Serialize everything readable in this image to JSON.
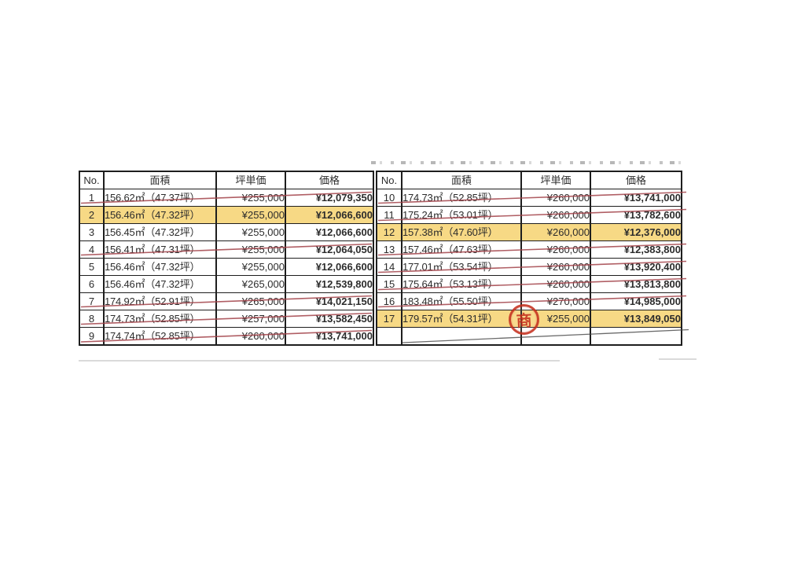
{
  "header_labels": {
    "no": "No.",
    "area": "面積",
    "unit_price": "坪単価",
    "price": "価格"
  },
  "left_table": {
    "rows": [
      {
        "no": "1",
        "area": "156.62㎡（47.37坪）",
        "unit_price": "¥255,000",
        "price": "¥12,079,350",
        "highlighted": false,
        "struck": true
      },
      {
        "no": "2",
        "area": "156.46㎡（47.32坪）",
        "unit_price": "¥255,000",
        "price": "¥12,066,600",
        "highlighted": true,
        "struck": false
      },
      {
        "no": "3",
        "area": "156.45㎡（47.32坪）",
        "unit_price": "¥255,000",
        "price": "¥12,066,600",
        "highlighted": false,
        "struck": false
      },
      {
        "no": "4",
        "area": "156.41㎡（47.31坪）",
        "unit_price": "¥255,000",
        "price": "¥12,064,050",
        "highlighted": false,
        "struck": true
      },
      {
        "no": "5",
        "area": "156.46㎡（47.32坪）",
        "unit_price": "¥255,000",
        "price": "¥12,066,600",
        "highlighted": false,
        "struck": false
      },
      {
        "no": "6",
        "area": "156.46㎡（47.32坪）",
        "unit_price": "¥265,000",
        "price": "¥12,539,800",
        "highlighted": false,
        "struck": false
      },
      {
        "no": "7",
        "area": "174.92㎡（52.91坪）",
        "unit_price": "¥265,000",
        "price": "¥14,021,150",
        "highlighted": false,
        "struck": true
      },
      {
        "no": "8",
        "area": "174.73㎡（52.85坪）",
        "unit_price": "¥257,000",
        "price": "¥13,582,450",
        "highlighted": false,
        "struck": true
      },
      {
        "no": "9",
        "area": "174.74㎡（52.85坪）",
        "unit_price": "¥260,000",
        "price": "¥13,741,000",
        "highlighted": false,
        "struck": true
      }
    ]
  },
  "right_table": {
    "rows": [
      {
        "no": "10",
        "area": "174.73㎡（52.85坪）",
        "unit_price": "¥260,000",
        "price": "¥13,741,000",
        "highlighted": false,
        "struck": true
      },
      {
        "no": "11",
        "area": "175.24㎡（53.01坪）",
        "unit_price": "¥260,000",
        "price": "¥13,782,600",
        "highlighted": false,
        "struck": true
      },
      {
        "no": "12",
        "area": "157.38㎡（47.60坪）",
        "unit_price": "¥260,000",
        "price": "¥12,376,000",
        "highlighted": true,
        "struck": false
      },
      {
        "no": "13",
        "area": "157.46㎡（47.63坪）",
        "unit_price": "¥260,000",
        "price": "¥12,383,800",
        "highlighted": false,
        "struck": true
      },
      {
        "no": "14",
        "area": "177.01㎡（53.54坪）",
        "unit_price": "¥260,000",
        "price": "¥13,920,400",
        "highlighted": false,
        "struck": true
      },
      {
        "no": "15",
        "area": "175.64㎡（53.13坪）",
        "unit_price": "¥260,000",
        "price": "¥13,813,800",
        "highlighted": false,
        "struck": true
      },
      {
        "no": "16",
        "area": "183.48㎡（55.50坪）",
        "unit_price": "¥270,000",
        "price": "¥14,985,000",
        "highlighted": false,
        "struck": true
      },
      {
        "no": "17",
        "area": "179.57㎡（54.31坪）",
        "unit_price": "¥255,000",
        "price": "¥13,849,050",
        "highlighted": true,
        "struck": false
      }
    ],
    "empty_row": {
      "dark_struck": true
    }
  },
  "stamp": {
    "character": "商",
    "on_row_no": "17"
  },
  "colors": {
    "highlight": "#f7d985",
    "strike_red": "#a3434a",
    "empty_strike_dark": "#454545",
    "stamp_red": "#c5301f",
    "border": "#1e1e1e",
    "text": "#2c2c2c"
  }
}
